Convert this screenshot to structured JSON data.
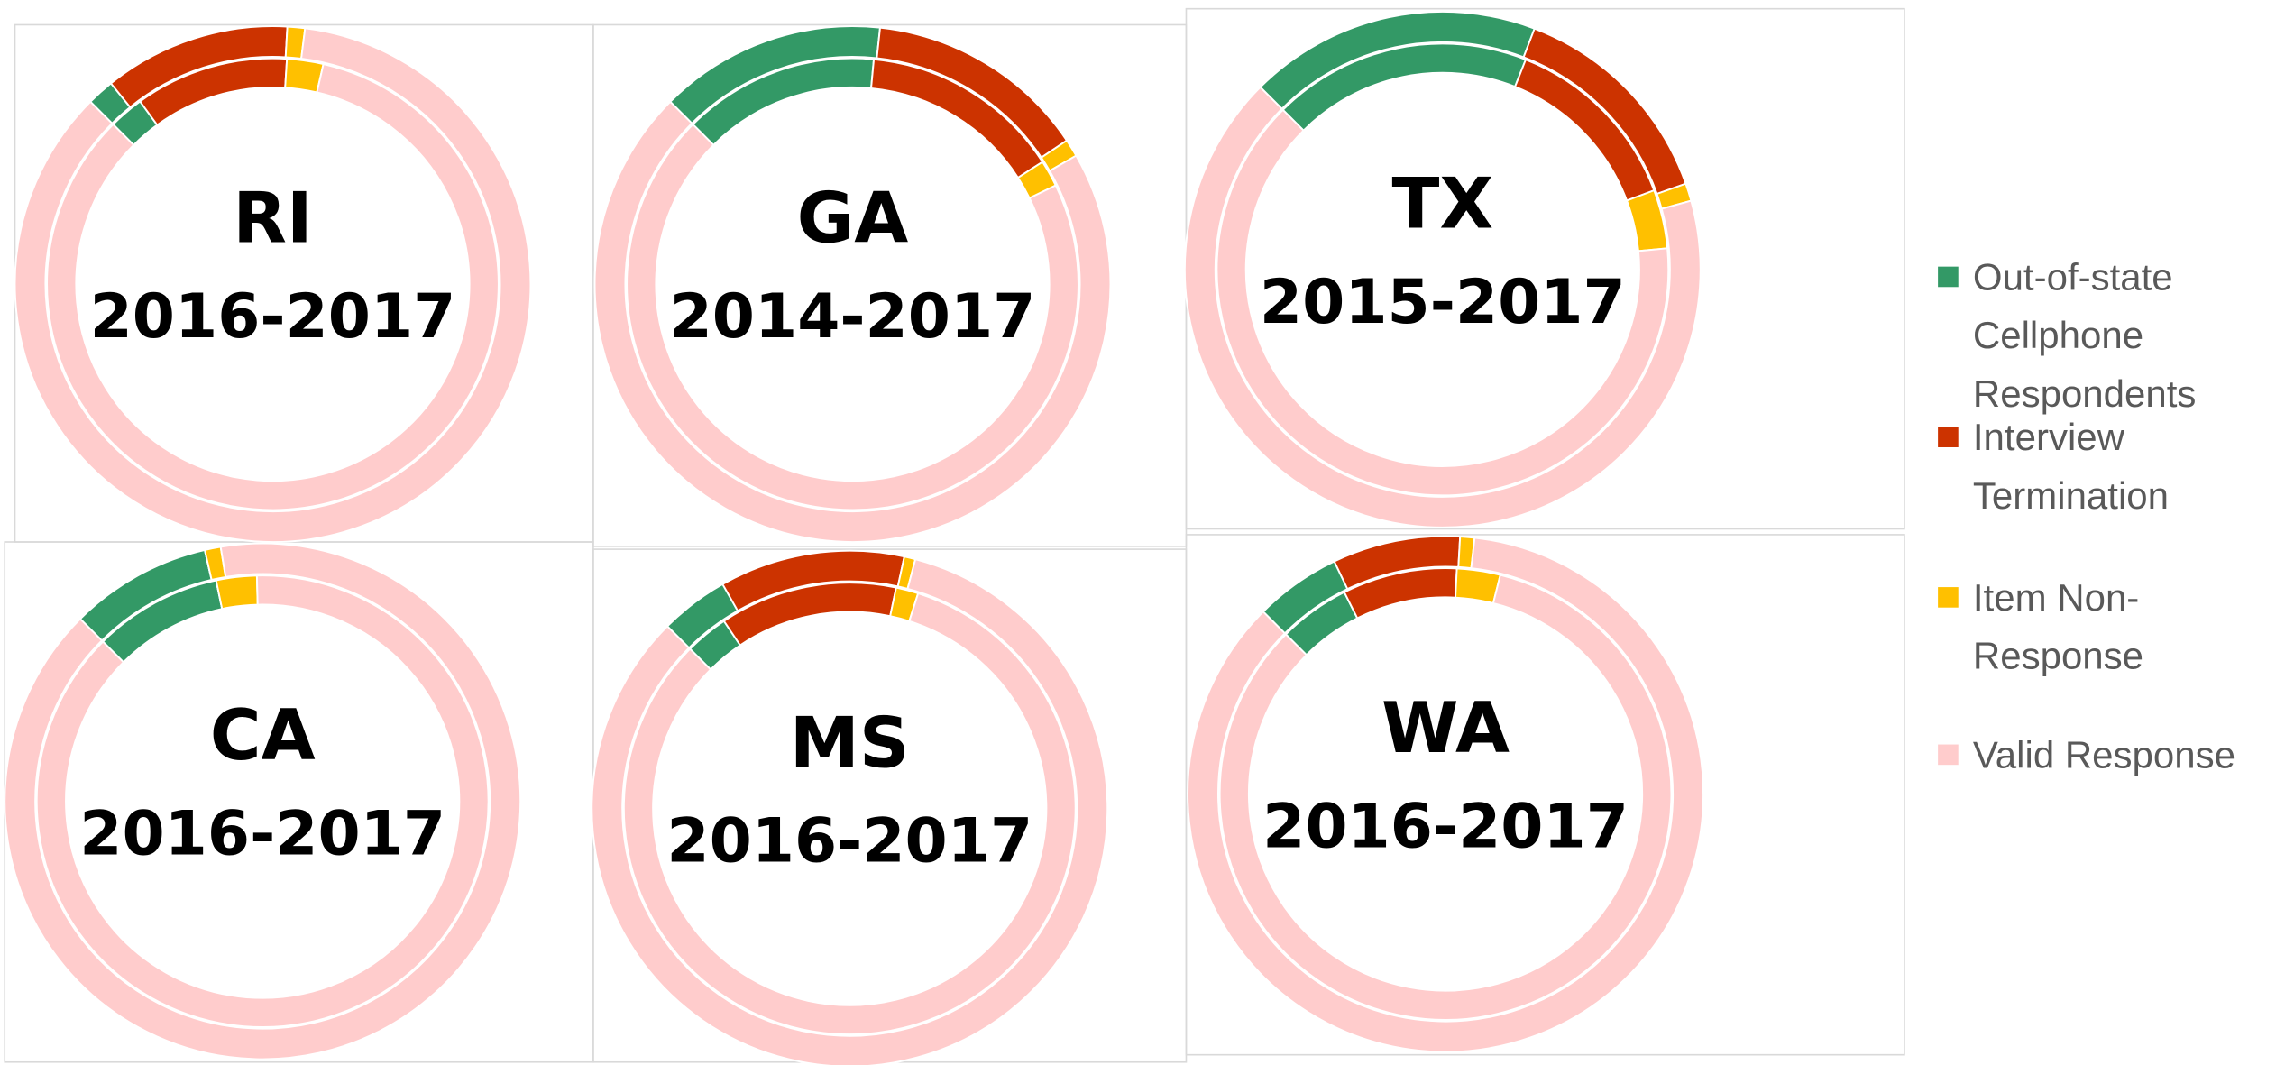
{
  "legend": {
    "categories": [
      "Out-of-state Cellphone Respondents",
      "Interview Termination",
      "Item Non-Response",
      "Valid Response"
    ],
    "colors": [
      "#339966",
      "#cc3300",
      "#ffc000",
      "#ffcccc"
    ]
  },
  "chart_data": [
    {
      "type": "doughnut",
      "title": "RI",
      "subtitle": "2016-2017",
      "start_angle": -45,
      "series": [
        {
          "values": [
            1.7,
            11.7,
            1.1,
            85.5
          ]
        },
        {
          "values": [
            2.5,
            11,
            2.6,
            83.9
          ]
        }
      ]
    },
    {
      "type": "doughnut",
      "title": "GA",
      "subtitle": "2014-2017",
      "start_angle": -45,
      "series": [
        {
          "values": [
            14.2,
            13.9,
            1.1,
            70.8
          ]
        },
        {
          "values": [
            14,
            14.4,
            1.9,
            69.7
          ]
        }
      ]
    },
    {
      "type": "doughnut",
      "title": "TX",
      "subtitle": "2015-2017",
      "start_angle": -45,
      "series": [
        {
          "values": [
            18.3,
            13.8,
            1.1,
            66.8
          ]
        },
        {
          "values": [
            18.5,
            13.3,
            4.2,
            64
          ]
        }
      ]
    },
    {
      "type": "doughnut",
      "title": "CA",
      "subtitle": "2016-2017",
      "start_angle": -45,
      "series": [
        {
          "values": [
            8.9,
            0,
            1,
            90.1
          ]
        },
        {
          "values": [
            9.2,
            0,
            2.9,
            87.9
          ]
        }
      ]
    },
    {
      "type": "doughnut",
      "title": "MS",
      "subtitle": "2016-2017",
      "start_angle": -45,
      "series": [
        {
          "values": [
            4.3,
            11.6,
            0.7,
            83.4
          ]
        },
        {
          "values": [
            3.1,
            12.7,
            1.6,
            82.6
          ]
        }
      ]
    },
    {
      "type": "doughnut",
      "title": "WA",
      "subtitle": "2016-2017",
      "start_angle": -45,
      "series": [
        {
          "values": [
            5.4,
            8,
            0.9,
            85.7
          ]
        },
        {
          "values": [
            5.1,
            8.2,
            3.1,
            83.6
          ]
        }
      ]
    }
  ]
}
